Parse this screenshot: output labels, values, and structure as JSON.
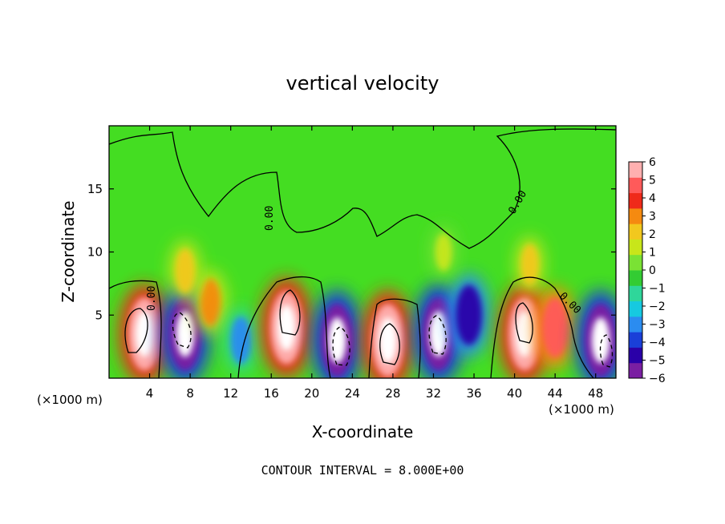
{
  "chart_data": {
    "type": "heatmap",
    "title": "vertical velocity",
    "xlabel": "X-coordinate",
    "ylabel": "Z-coordinate",
    "x_unit_label": "(×1000 m)",
    "x_unit_label_right": "(×1000 m)",
    "footnote": "CONTOUR INTERVAL = 8.000E+00",
    "contour_label": "0.00",
    "xlim": [
      0,
      50
    ],
    "ylim": [
      0,
      20
    ],
    "x_ticks": [
      4,
      8,
      12,
      16,
      20,
      24,
      28,
      32,
      36,
      40,
      44,
      48
    ],
    "x_tick_labels": [
      "4",
      "8",
      "12",
      "16",
      "20",
      "24",
      "28",
      "32",
      "36",
      "40",
      "44",
      "48"
    ],
    "y_ticks": [
      5,
      10,
      15
    ],
    "y_tick_labels": [
      "5",
      "10",
      "15"
    ],
    "grid": false,
    "colorbar": {
      "position": "right",
      "min": -6,
      "max": 6,
      "tick_values": [
        6,
        5,
        4,
        3,
        2,
        1,
        0,
        -1,
        -2,
        -3,
        -4,
        -5,
        -6
      ],
      "tick_labels": [
        "6",
        "5",
        "4",
        "3",
        "2",
        "1",
        "0",
        "−1",
        "−2",
        "−3",
        "−4",
        "−5",
        "−6"
      ],
      "colors": [
        "#7a1fa2",
        "#2a00a8",
        "#1a3fd8",
        "#2b8cf0",
        "#16c9e0",
        "#2fd69a",
        "#33cc33",
        "#7ae234",
        "#c8e61a",
        "#f2c81e",
        "#f58a10",
        "#ef2a1a",
        "#ff5a5a",
        "#ffb0b0"
      ]
    },
    "cells": [
      {
        "x": 3.5,
        "z": 3.5,
        "w": 7
      },
      {
        "x": 7.5,
        "z": 3.5,
        "w": -7
      },
      {
        "x": 10,
        "z": 6,
        "w": 3
      },
      {
        "x": 13,
        "z": 3,
        "w": -3
      },
      {
        "x": 17.5,
        "z": 4,
        "w": 7
      },
      {
        "x": 22.5,
        "z": 3,
        "w": -7
      },
      {
        "x": 27.5,
        "z": 3,
        "w": 7
      },
      {
        "x": 32.5,
        "z": 3.5,
        "w": -7
      },
      {
        "x": 35.5,
        "z": 5,
        "w": -5
      },
      {
        "x": 41,
        "z": 3.5,
        "w": 7
      },
      {
        "x": 44,
        "z": 4,
        "w": 5
      },
      {
        "x": 48.5,
        "z": 3,
        "w": -7
      },
      {
        "x": 41.5,
        "z": 9,
        "w": 2
      },
      {
        "x": 33,
        "z": 10,
        "w": 1.5
      },
      {
        "x": 7.5,
        "z": 8.5,
        "w": 2.5
      }
    ]
  }
}
